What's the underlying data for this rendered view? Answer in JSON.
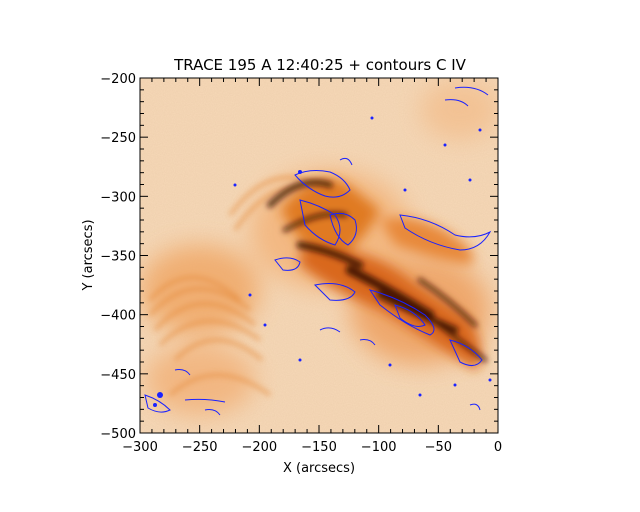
{
  "title": "TRACE 195 A 12:40:25 + contours C IV",
  "xlabel": "X (arcsecs)",
  "ylabel": "Y (arcsecs)",
  "xlim": [
    -300,
    0
  ],
  "ylim": [
    -500,
    -200
  ],
  "xticks": [
    -300,
    -250,
    -200,
    -150,
    -100,
    -50,
    0
  ],
  "yticks": [
    -500,
    -450,
    -400,
    -350,
    -300,
    -250,
    -200
  ],
  "xtick_labels": [
    "−300",
    "−250",
    "−200",
    "−150",
    "−100",
    "−50",
    "0"
  ],
  "ytick_labels": [
    "−500",
    "−450",
    "−400",
    "−350",
    "−300",
    "−250",
    "−200"
  ],
  "colors": {
    "background_image": "#f7d9b8",
    "bright_emission": "#e07a20",
    "dark_emission": "#3a0f05",
    "contours": "#1a22ff"
  }
}
